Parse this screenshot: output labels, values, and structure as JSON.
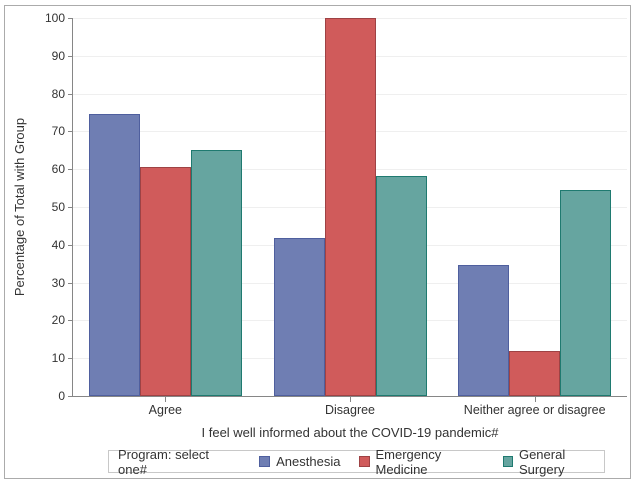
{
  "figure": {
    "background": "#ffffff",
    "border_color": "#ababab"
  },
  "chart_data": {
    "type": "bar",
    "title": "",
    "categories": [
      "Agree",
      "Disagree",
      "Neither agree or disagree"
    ],
    "series": [
      {
        "name": "Anesthesia",
        "color": "#6F7EB3",
        "outline": "#4F5F9E",
        "values": [
          74.7,
          41.8,
          34.6
        ]
      },
      {
        "name": "Emergency Medicine",
        "color": "#D05B5B",
        "outline": "#9E4244",
        "values": [
          60.6,
          100,
          11.8
        ]
      },
      {
        "name": "General Surgery",
        "color": "#66A5A0",
        "outline": "#1F7A70",
        "values": [
          65.0,
          58.3,
          54.6
        ]
      }
    ],
    "xlabel": "I feel well informed about the COVID-19 pandemic#",
    "ylabel": "Percentage of Total with Group",
    "ylim": [
      0,
      100
    ],
    "yticks": [
      0,
      10,
      20,
      30,
      40,
      50,
      60,
      70,
      80,
      90,
      100
    ],
    "grid": true,
    "legend": {
      "title": "Program: select one#",
      "position": "bottom"
    }
  },
  "style_colors": {
    "gridline": "#efefef",
    "axis_line": "#868686",
    "text": "#333333",
    "legend_border": "#c8c8c8"
  }
}
